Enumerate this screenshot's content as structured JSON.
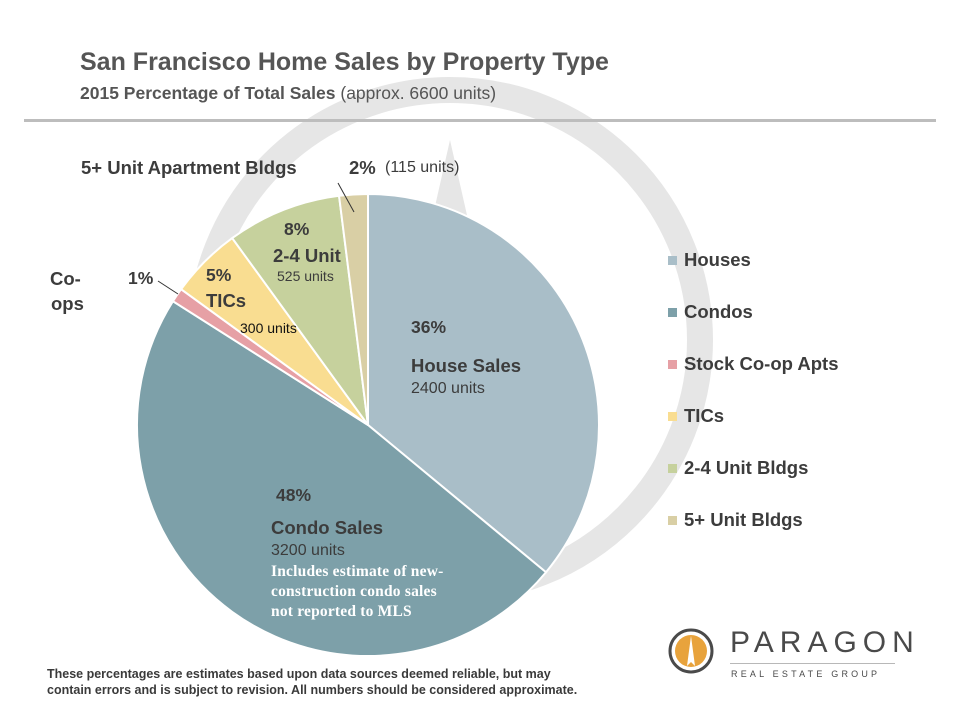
{
  "header": {
    "title": "San Francisco Home Sales by Property Type",
    "subtitle_bold": "2015 Percentage of Total Sales",
    "subtitle_note": "(approx. 6600 units)"
  },
  "chart_data": {
    "type": "pie",
    "title": "San Francisco Home Sales by Property Type",
    "subtitle": "2015 Percentage of Total Sales (approx. 6600 units)",
    "start_angle_deg": 0,
    "direction": "clockwise",
    "slices": [
      {
        "name": "Houses",
        "percent": 36,
        "units": 2400,
        "color": "#a9bec8"
      },
      {
        "name": "Condos",
        "percent": 48,
        "units": 3200,
        "color": "#7da0a9"
      },
      {
        "name": "Stock Co-op Apts",
        "percent": 1,
        "units": null,
        "color": "#e6a0a5"
      },
      {
        "name": "TICs",
        "percent": 5,
        "units": 300,
        "color": "#f9dd91"
      },
      {
        "name": "2-4 Unit Bldgs",
        "percent": 8,
        "units": 525,
        "color": "#c6d19d"
      },
      {
        "name": "5+ Unit Bldgs",
        "percent": 2,
        "units": 115,
        "color": "#d9cfa5"
      }
    ],
    "legend": {
      "position": "right",
      "entries": [
        "Houses",
        "Condos",
        "Stock Co-op Apts",
        "TICs",
        "2-4 Unit Bldgs",
        "5+ Unit Bldgs"
      ]
    }
  },
  "annotations": {
    "apt_label": "5+ Unit  Apartment Bldgs",
    "apt_pct": "2%",
    "apt_units": "(115 units)",
    "unit24_pct": "8%",
    "unit24_name": "2-4 Unit",
    "unit24_units": "525 units",
    "tic_pct": "5%",
    "tic_name": "TICs",
    "tic_units": "300 units",
    "coop_name_1": "Co-",
    "coop_name_2": "ops",
    "coop_pct": "1%",
    "house_pct": "36%",
    "house_name": "House Sales",
    "house_units": "2400 units",
    "condo_pct": "48%",
    "condo_name": "Condo Sales",
    "condo_units": "3200 units",
    "condo_note_1": "Includes estimate of new-",
    "condo_note_2": "construction condo sales",
    "condo_note_3": "not reported to MLS"
  },
  "footnote": {
    "line1": "These percentages are estimates based upon data sources  deemed reliable, but may",
    "line2": "contain errors and is subject to revision. All numbers should be considered approximate."
  },
  "logo": {
    "name": "PARAGON",
    "tagline": "REAL ESTATE GROUP",
    "colors": {
      "orange": "#e8a33c",
      "dark": "#4a4a4a"
    }
  },
  "watermark": {
    "color": "#e6e6e6"
  }
}
